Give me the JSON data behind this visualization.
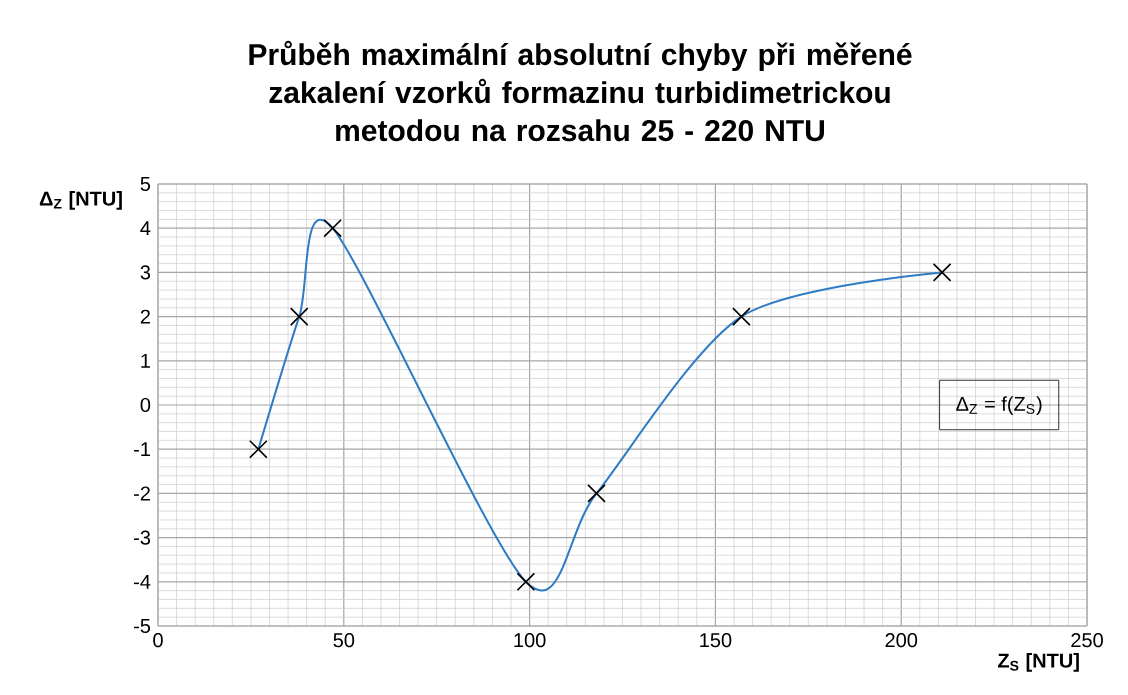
{
  "chart_data": {
    "type": "line",
    "title": "Průběh maximální absolutní chyby při měřené zakalení vzorků formazinu turbidimetrickou metodou na rozsahu 25 - 220 NTU",
    "xlabel": "Z$_{S}$ [NTU]",
    "ylabel": "Δ$_{Z}$ [NTU]",
    "x": [
      27,
      38,
      47,
      99,
      118,
      157,
      211
    ],
    "series": [
      {
        "name": "Δ$_{Z}$ = f(Z$_{S}$)",
        "color": "#2e7bc6",
        "values": [
          -1,
          2,
          4,
          -4,
          -2,
          2,
          3
        ]
      }
    ],
    "xlim": [
      0,
      250
    ],
    "xticks": [
      0,
      50,
      100,
      150,
      200,
      250
    ],
    "ylim": [
      -5,
      5
    ],
    "yticks": [
      -5,
      -4,
      -3,
      -2,
      -1,
      0,
      1,
      2,
      3,
      4,
      5
    ],
    "grid": true,
    "legend": "right",
    "marker": "cross",
    "line_style": "solid"
  }
}
